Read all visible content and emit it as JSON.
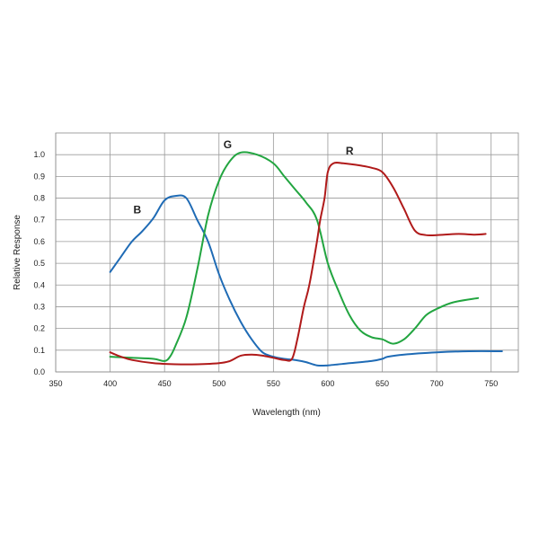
{
  "chart_data": {
    "type": "line",
    "title": "",
    "xlabel": "Wavelength (nm)",
    "ylabel": "Relative Response",
    "xlim": [
      350,
      775
    ],
    "ylim": [
      0,
      1.1
    ],
    "x_ticks": [
      350,
      400,
      450,
      500,
      550,
      600,
      650,
      700,
      750
    ],
    "y_ticks": [
      0.0,
      0.1,
      0.2,
      0.3,
      0.4,
      0.5,
      0.6,
      0.7,
      0.8,
      0.9,
      1.0
    ],
    "x_tick_labels": [
      "350",
      "400",
      "450",
      "500",
      "550",
      "600",
      "650",
      "700",
      "750"
    ],
    "y_tick_labels": [
      "0.0",
      "0.1",
      "0.2",
      "0.3",
      "0.4",
      "0.5",
      "0.6",
      "0.7",
      "0.8",
      "0.9",
      "1.0"
    ],
    "grid": true,
    "legend": "none",
    "series": [
      {
        "name": "B",
        "color": "#1f6bb5",
        "label_at": [
          425,
          0.73
        ],
        "points": [
          [
            400,
            0.46
          ],
          [
            410,
            0.53
          ],
          [
            420,
            0.6
          ],
          [
            430,
            0.65
          ],
          [
            440,
            0.71
          ],
          [
            450,
            0.79
          ],
          [
            460,
            0.81
          ],
          [
            470,
            0.8
          ],
          [
            480,
            0.7
          ],
          [
            490,
            0.6
          ],
          [
            500,
            0.45
          ],
          [
            510,
            0.33
          ],
          [
            520,
            0.23
          ],
          [
            530,
            0.15
          ],
          [
            540,
            0.09
          ],
          [
            550,
            0.07
          ],
          [
            560,
            0.06
          ],
          [
            570,
            0.055
          ],
          [
            580,
            0.045
          ],
          [
            590,
            0.03
          ],
          [
            600,
            0.03
          ],
          [
            620,
            0.04
          ],
          [
            640,
            0.05
          ],
          [
            650,
            0.06
          ],
          [
            655,
            0.07
          ],
          [
            670,
            0.08
          ],
          [
            700,
            0.09
          ],
          [
            730,
            0.095
          ],
          [
            760,
            0.095
          ]
        ]
      },
      {
        "name": "G",
        "color": "#22a540",
        "label_at": [
          508,
          1.03
        ],
        "points": [
          [
            400,
            0.07
          ],
          [
            420,
            0.065
          ],
          [
            440,
            0.06
          ],
          [
            450,
            0.05
          ],
          [
            455,
            0.07
          ],
          [
            460,
            0.12
          ],
          [
            470,
            0.25
          ],
          [
            480,
            0.47
          ],
          [
            490,
            0.72
          ],
          [
            500,
            0.88
          ],
          [
            510,
            0.97
          ],
          [
            520,
            1.01
          ],
          [
            535,
            1.0
          ],
          [
            550,
            0.96
          ],
          [
            560,
            0.9
          ],
          [
            570,
            0.84
          ],
          [
            580,
            0.78
          ],
          [
            590,
            0.7
          ],
          [
            600,
            0.5
          ],
          [
            610,
            0.37
          ],
          [
            620,
            0.26
          ],
          [
            630,
            0.19
          ],
          [
            640,
            0.16
          ],
          [
            650,
            0.15
          ],
          [
            660,
            0.13
          ],
          [
            670,
            0.15
          ],
          [
            680,
            0.2
          ],
          [
            690,
            0.26
          ],
          [
            700,
            0.29
          ],
          [
            715,
            0.32
          ],
          [
            738,
            0.34
          ]
        ]
      },
      {
        "name": "R",
        "color": "#b01a1a",
        "label_at": [
          620,
          1.0
        ],
        "points": [
          [
            400,
            0.09
          ],
          [
            410,
            0.07
          ],
          [
            420,
            0.055
          ],
          [
            440,
            0.04
          ],
          [
            460,
            0.035
          ],
          [
            480,
            0.035
          ],
          [
            500,
            0.04
          ],
          [
            510,
            0.05
          ],
          [
            520,
            0.075
          ],
          [
            530,
            0.08
          ],
          [
            540,
            0.075
          ],
          [
            550,
            0.065
          ],
          [
            560,
            0.055
          ],
          [
            567,
            0.06
          ],
          [
            572,
            0.15
          ],
          [
            578,
            0.3
          ],
          [
            583,
            0.4
          ],
          [
            590,
            0.6
          ],
          [
            593,
            0.7
          ],
          [
            597,
            0.8
          ],
          [
            600,
            0.92
          ],
          [
            605,
            0.96
          ],
          [
            615,
            0.96
          ],
          [
            630,
            0.95
          ],
          [
            640,
            0.94
          ],
          [
            650,
            0.92
          ],
          [
            660,
            0.85
          ],
          [
            670,
            0.75
          ],
          [
            680,
            0.65
          ],
          [
            690,
            0.63
          ],
          [
            700,
            0.63
          ],
          [
            720,
            0.635
          ],
          [
            735,
            0.632
          ],
          [
            745,
            0.635
          ]
        ]
      }
    ]
  }
}
